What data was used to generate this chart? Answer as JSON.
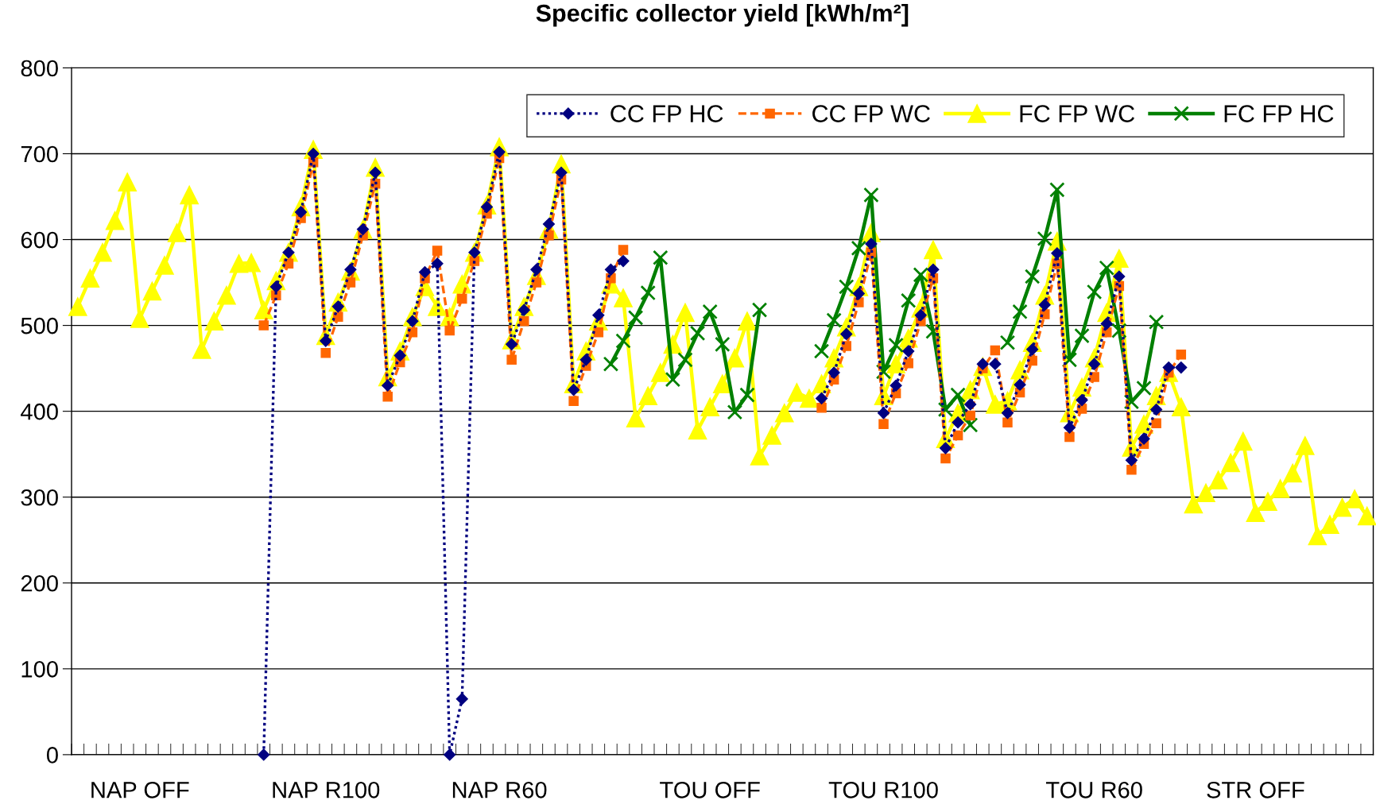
{
  "chart_data": {
    "type": "line",
    "title": "Specific collector yield [kWh/m²]",
    "categories": [
      null,
      null,
      null,
      null,
      null,
      "NAP OFF",
      null,
      null,
      null,
      null,
      null,
      null,
      null,
      null,
      null,
      null,
      null,
      null,
      null,
      null,
      "NAP R100",
      null,
      null,
      null,
      null,
      null,
      null,
      null,
      null,
      null,
      null,
      null,
      null,
      null,
      "NAP R60",
      null,
      null,
      null,
      null,
      null,
      null,
      null,
      null,
      null,
      null,
      null,
      null,
      null,
      null,
      null,
      null,
      "TOU OFF",
      null,
      null,
      null,
      null,
      null,
      null,
      null,
      null,
      null,
      null,
      null,
      null,
      null,
      "TOU R100",
      null,
      null,
      null,
      null,
      null,
      null,
      null,
      null,
      null,
      null,
      null,
      null,
      null,
      null,
      null,
      null,
      "TOU R60",
      null,
      null,
      null,
      null,
      null,
      null,
      null,
      null,
      null,
      null,
      null,
      null,
      "STR OFF",
      null,
      null,
      null,
      null,
      null,
      null,
      null,
      null,
      null
    ],
    "series": [
      {
        "name": "CC FP HC",
        "color": "#000080",
        "marker": "diamond",
        "line_style": "dotted",
        "values": [
          null,
          null,
          null,
          null,
          null,
          null,
          null,
          null,
          null,
          null,
          null,
          null,
          null,
          null,
          null,
          0,
          545,
          585,
          632,
          700,
          482,
          522,
          565,
          612,
          678,
          430,
          465,
          505,
          562,
          572,
          0,
          65,
          585,
          638,
          702,
          478,
          518,
          565,
          618,
          678,
          425,
          460,
          512,
          565,
          575,
          null,
          null,
          null,
          null,
          null,
          null,
          null,
          null,
          null,
          null,
          null,
          null,
          null,
          null,
          null,
          415,
          445,
          490,
          537,
          595,
          398,
          430,
          470,
          512,
          565,
          357,
          387,
          408,
          455,
          455,
          398,
          431,
          472,
          524,
          584,
          381,
          413,
          455,
          502,
          557,
          343,
          368,
          402,
          451,
          451,
          null,
          null,
          null,
          null,
          null,
          null,
          null,
          null,
          null,
          null,
          null,
          null,
          null,
          null,
          null
        ]
      },
      {
        "name": "CC FP WC",
        "color": "#ff6600",
        "marker": "square",
        "line_style": "dashed",
        "values": [
          null,
          null,
          null,
          null,
          null,
          null,
          null,
          null,
          null,
          null,
          null,
          null,
          null,
          null,
          null,
          500,
          535,
          572,
          625,
          690,
          468,
          510,
          550,
          605,
          665,
          417,
          457,
          492,
          555,
          587,
          494,
          531,
          575,
          630,
          695,
          460,
          505,
          550,
          605,
          670,
          412,
          453,
          492,
          555,
          588,
          null,
          null,
          null,
          null,
          null,
          null,
          null,
          null,
          null,
          null,
          null,
          null,
          null,
          null,
          null,
          404,
          437,
          476,
          527,
          585,
          385,
          421,
          456,
          505,
          555,
          345,
          372,
          395,
          450,
          471,
          387,
          422,
          459,
          513,
          572,
          370,
          403,
          440,
          492,
          546,
          332,
          362,
          386,
          445,
          466,
          null,
          null,
          null,
          null,
          null,
          null,
          null,
          null,
          null,
          null,
          null,
          null,
          null,
          null,
          null
        ]
      },
      {
        "name": "FC FP WC",
        "color": "#ffff00",
        "marker": "triangle",
        "line_style": "solid",
        "values": [
          522,
          555,
          585,
          622,
          667,
          508,
          540,
          570,
          608,
          652,
          472,
          505,
          535,
          572,
          573,
          518,
          552,
          585,
          638,
          705,
          488,
          527,
          563,
          612,
          684,
          440,
          470,
          510,
          545,
          522,
          510,
          548,
          585,
          640,
          708,
          483,
          522,
          558,
          612,
          688,
          432,
          470,
          505,
          548,
          532,
          392,
          418,
          445,
          478,
          515,
          378,
          405,
          432,
          462,
          505,
          348,
          372,
          398,
          422,
          415,
          432,
          462,
          498,
          545,
          608,
          418,
          455,
          485,
          520,
          588,
          368,
          398,
          425,
          452,
          408,
          412,
          448,
          480,
          535,
          598,
          398,
          428,
          462,
          515,
          578,
          358,
          385,
          418,
          445,
          405,
          292,
          305,
          320,
          340,
          365,
          282,
          295,
          310,
          328,
          360,
          255,
          268,
          288,
          298,
          278
        ]
      },
      {
        "name": "FC FP HC",
        "color": "#008000",
        "marker": "cross",
        "line_style": "solid",
        "values": [
          null,
          null,
          null,
          null,
          null,
          null,
          null,
          null,
          null,
          null,
          null,
          null,
          null,
          null,
          null,
          null,
          null,
          null,
          null,
          null,
          null,
          null,
          null,
          null,
          null,
          null,
          null,
          null,
          null,
          null,
          null,
          null,
          null,
          null,
          null,
          null,
          null,
          null,
          null,
          null,
          null,
          null,
          null,
          455,
          482,
          509,
          538,
          579,
          437,
          460,
          491,
          516,
          478,
          399,
          419,
          518,
          null,
          null,
          null,
          null,
          470,
          506,
          545,
          590,
          652,
          446,
          477,
          529,
          559,
          493,
          402,
          419,
          384,
          null,
          null,
          480,
          516,
          557,
          601,
          658,
          460,
          488,
          539,
          567,
          494,
          411,
          427,
          504,
          null,
          null,
          null,
          null,
          null,
          null,
          null,
          null,
          null,
          null,
          null,
          null,
          null,
          null,
          null,
          null,
          null
        ]
      }
    ],
    "ylim": [
      0,
      800
    ],
    "yticks": [
      0,
      100,
      200,
      300,
      400,
      500,
      600,
      700,
      800
    ],
    "grid": "y",
    "legend": "top right"
  }
}
